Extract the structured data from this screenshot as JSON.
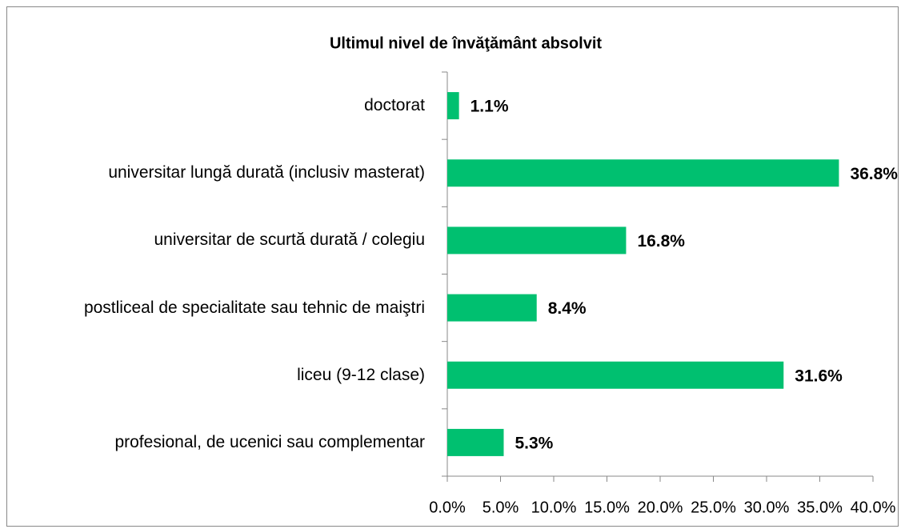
{
  "chart_data": {
    "type": "barh",
    "title": "Ultimul nivel de învăţământ absolvit",
    "categories": [
      "doctorat",
      "universitar lungă durată (inclusiv masterat)",
      "universitar de scurtă durată / colegiu",
      "postliceal de specialitate sau tehnic de maiştri",
      "liceu (9-12 clase)",
      "profesional, de ucenici sau complementar"
    ],
    "values": [
      1.1,
      36.8,
      16.8,
      8.4,
      31.6,
      5.3
    ],
    "value_labels": [
      "1.1%",
      "36.8%",
      "16.8%",
      "8.4%",
      "31.6%",
      "5.3%"
    ],
    "color": "#00c070",
    "xlim": [
      0,
      40
    ],
    "xticks": [
      {
        "value": 0,
        "label": "0.0%"
      },
      {
        "value": 5,
        "label": "5.0%"
      },
      {
        "value": 10,
        "label": "10.0%"
      },
      {
        "value": 15,
        "label": "15.0%"
      },
      {
        "value": 20,
        "label": "20.0%"
      },
      {
        "value": 25,
        "label": "25.0%"
      },
      {
        "value": 30,
        "label": "30.0%"
      },
      {
        "value": 35,
        "label": "35.0%"
      },
      {
        "value": 40,
        "label": "40.0%"
      }
    ],
    "grid": false
  }
}
